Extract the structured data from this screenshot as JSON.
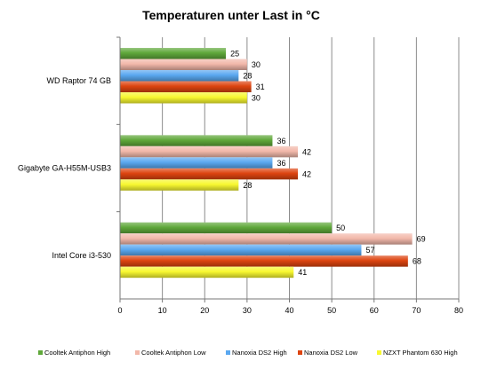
{
  "chart_data": {
    "type": "bar",
    "orientation": "horizontal",
    "title": "Temperaturen unter Last in °C",
    "categories": [
      "WD Raptor 74 GB",
      "Gigabyte GA-H55M-USB3",
      "Intel Core i3-530"
    ],
    "series": [
      {
        "name": "Cooltek Antiphon High",
        "color": "#5fa83a",
        "values": [
          25,
          36,
          50
        ]
      },
      {
        "name": "Cooltek Antiphon Low",
        "color": "#f2b8aa",
        "values": [
          30,
          42,
          69
        ]
      },
      {
        "name": "Nanoxia DS2 High",
        "color": "#5aa8f0",
        "values": [
          28,
          36,
          57
        ]
      },
      {
        "name": "Nanoxia DS2 Low",
        "color": "#dd4410",
        "values": [
          31,
          42,
          68
        ]
      },
      {
        "name": "NZXT Phantom 630 High",
        "color": "#f8f830",
        "values": [
          30,
          28,
          41
        ]
      }
    ],
    "xlim": [
      0,
      80
    ],
    "ticks": [
      "0",
      "10",
      "20",
      "30",
      "40",
      "50",
      "60",
      "70",
      "80"
    ],
    "grid": true,
    "legend_position": "bottom"
  }
}
